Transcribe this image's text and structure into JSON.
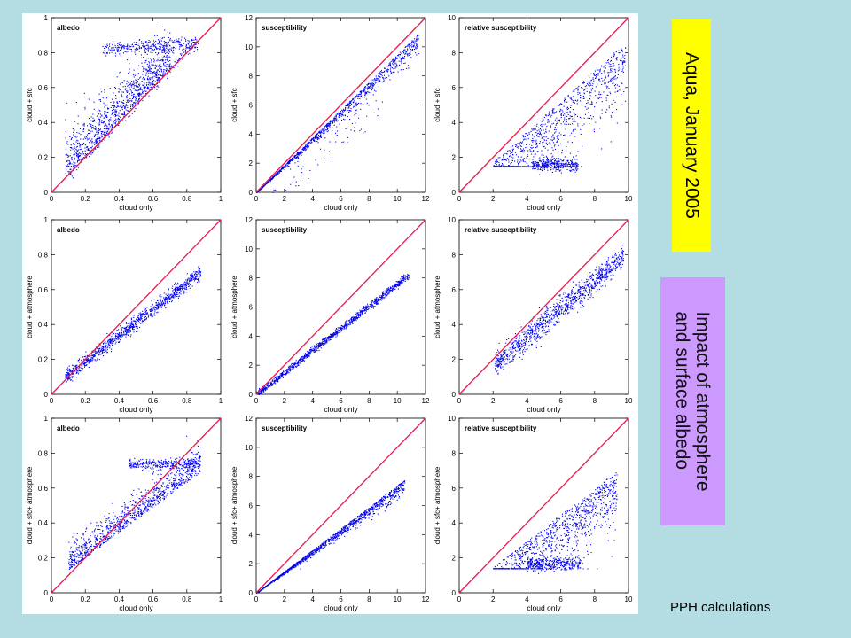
{
  "title": "Aqua, January 2005",
  "impact_lines": [
    "Impact of atmosphere",
    "and surface albedo"
  ],
  "footer": "PPH calculations",
  "colors": {
    "points": "#0000ee",
    "one_to_one": "#e8194e",
    "yellow_box": "#ffff00",
    "purple_box": "#cc99ff",
    "background": "#b3dde3"
  },
  "chart_data": [
    {
      "type": "scatter",
      "title": "albedo",
      "xlabel": "cloud only",
      "ylabel": "cloud + sfc",
      "xlim": [
        0,
        1
      ],
      "ylim": [
        0,
        1
      ],
      "xticks": [
        "0",
        "0.2",
        "0.4",
        "0.6",
        "0.8",
        "1"
      ],
      "yticks": [
        "0",
        "0.2",
        "0.4",
        "0.6",
        "0.8",
        "1"
      ],
      "reference_line": "1:1"
    },
    {
      "type": "scatter",
      "title": "susceptibility",
      "xlabel": "cloud only",
      "ylabel": "cloud + sfc",
      "xlim": [
        0,
        12
      ],
      "ylim": [
        0,
        12
      ],
      "xticks": [
        "0",
        "2",
        "4",
        "6",
        "8",
        "10",
        "12"
      ],
      "yticks": [
        "0",
        "2",
        "4",
        "6",
        "8",
        "10",
        "12"
      ],
      "reference_line": "1:1"
    },
    {
      "type": "scatter",
      "title": "relative susceptibility",
      "xlabel": "cloud only",
      "ylabel": "cloud + sfc",
      "xlim": [
        0,
        10
      ],
      "ylim": [
        0,
        10
      ],
      "xticks": [
        "0",
        "2",
        "4",
        "6",
        "8",
        "10"
      ],
      "yticks": [
        "0",
        "2",
        "4",
        "6",
        "8",
        "10"
      ],
      "reference_line": "1:1"
    },
    {
      "type": "scatter",
      "title": "albedo",
      "xlabel": "cloud only",
      "ylabel": "cloud + atmosphere",
      "xlim": [
        0,
        1
      ],
      "ylim": [
        0,
        1
      ],
      "xticks": [
        "0",
        "0.2",
        "0.4",
        "0.6",
        "0.8",
        "1"
      ],
      "yticks": [
        "0",
        "0.2",
        "0.4",
        "0.6",
        "0.8",
        "1"
      ],
      "reference_line": "1:1"
    },
    {
      "type": "scatter",
      "title": "susceptibility",
      "xlabel": "cloud only",
      "ylabel": "cloud + atmosphere",
      "xlim": [
        0,
        12
      ],
      "ylim": [
        0,
        12
      ],
      "xticks": [
        "0",
        "2",
        "4",
        "6",
        "8",
        "10",
        "12"
      ],
      "yticks": [
        "0",
        "2",
        "4",
        "6",
        "8",
        "10",
        "12"
      ],
      "reference_line": "1:1"
    },
    {
      "type": "scatter",
      "title": "relative susceptibility",
      "xlabel": "cloud only",
      "ylabel": "cloud + atmosphere",
      "xlim": [
        0,
        10
      ],
      "ylim": [
        0,
        10
      ],
      "xticks": [
        "0",
        "2",
        "4",
        "6",
        "8",
        "10"
      ],
      "yticks": [
        "0",
        "2",
        "4",
        "6",
        "8",
        "10"
      ],
      "reference_line": "1:1"
    },
    {
      "type": "scatter",
      "title": "albedo",
      "xlabel": "cloud only",
      "ylabel": "cloud + sfc+ atmosphere",
      "xlim": [
        0,
        1
      ],
      "ylim": [
        0,
        1
      ],
      "xticks": [
        "0",
        "0.2",
        "0.4",
        "0.6",
        "0.8",
        "1"
      ],
      "yticks": [
        "0",
        "0.2",
        "0.4",
        "0.6",
        "0.8",
        "1"
      ],
      "reference_line": "1:1"
    },
    {
      "type": "scatter",
      "title": "susceptibility",
      "xlabel": "cloud only",
      "ylabel": "cloud + sfc+ atmosphere",
      "xlim": [
        0,
        12
      ],
      "ylim": [
        0,
        12
      ],
      "xticks": [
        "0",
        "2",
        "4",
        "6",
        "8",
        "10",
        "12"
      ],
      "yticks": [
        "0",
        "2",
        "4",
        "6",
        "8",
        "10",
        "12"
      ],
      "reference_line": "1:1"
    },
    {
      "type": "scatter",
      "title": "relative susceptibility",
      "xlabel": "cloud only",
      "ylabel": "cloud + sfc+ atmosphere",
      "xlim": [
        0,
        10
      ],
      "ylim": [
        0,
        10
      ],
      "xticks": [
        "0",
        "2",
        "4",
        "6",
        "8",
        "10"
      ],
      "yticks": [
        "0",
        "2",
        "4",
        "6",
        "8",
        "10"
      ],
      "reference_line": "1:1"
    }
  ]
}
